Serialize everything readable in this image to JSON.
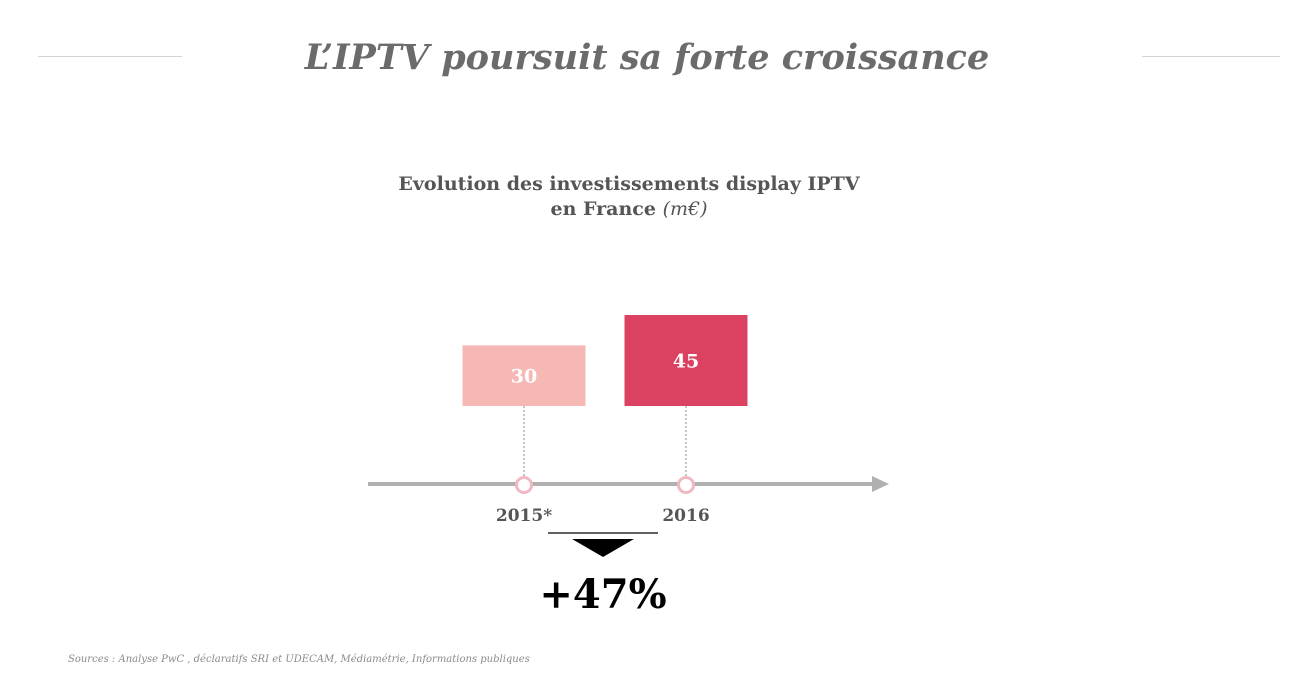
{
  "page": {
    "title": "L’IPTV poursuit sa forte croissance",
    "sources": "Sources : Analyse PwC , déclaratifs SRI et UDECAM, Médiamétrie, Informations publiques"
  },
  "chart_data": {
    "type": "bar",
    "title": "Evolution des investissements display IPTV",
    "subtitle": "en France",
    "unit": "(m€)",
    "categories": [
      "2015*",
      "2016"
    ],
    "values": [
      30,
      45
    ],
    "series": [
      {
        "values": [
          30,
          45
        ]
      }
    ],
    "growth_label": "+47%",
    "colors": {
      "bars": [
        "#f5b8b5",
        "#db4160"
      ],
      "axis": "#b0b0b0",
      "marker": "#f0b8c2",
      "growth_arrow": "#000000"
    }
  }
}
